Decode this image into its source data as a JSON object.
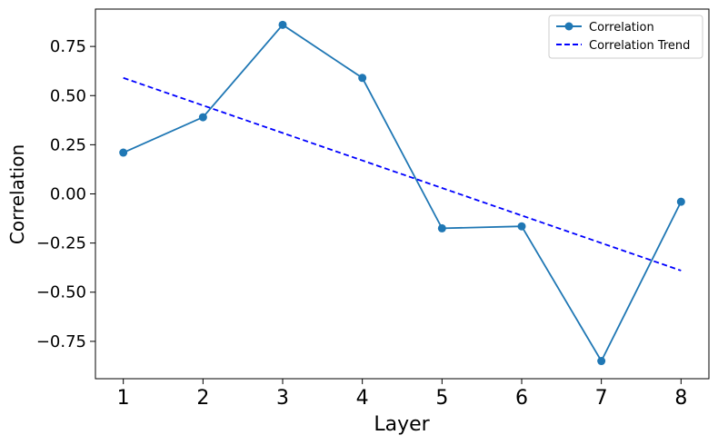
{
  "chart_data": {
    "type": "line",
    "xlabel": "Layer",
    "ylabel": "Correlation",
    "x": [
      1,
      2,
      3,
      4,
      5,
      6,
      7,
      8
    ],
    "xlim": [
      0.65,
      8.35
    ],
    "ylim": [
      -0.94,
      0.94
    ],
    "yticks": [
      -0.75,
      -0.5,
      -0.25,
      0.0,
      0.25,
      0.5,
      0.75
    ],
    "ytick_labels": [
      "−0.75",
      "−0.50",
      "−0.25",
      "0.00",
      "0.25",
      "0.50",
      "0.75"
    ],
    "xtick_labels": [
      "1",
      "2",
      "3",
      "4",
      "5",
      "6",
      "7",
      "8"
    ],
    "grid": false,
    "legend_position": "top-right",
    "series": [
      {
        "name": "Correlation",
        "values": [
          0.21,
          0.39,
          0.86,
          0.59,
          -0.175,
          -0.165,
          -0.85,
          -0.04
        ],
        "color": "#1f77b4",
        "style": "solid",
        "marker": "circle"
      },
      {
        "name": "Correlation Trend",
        "values": [
          0.59,
          0.45,
          0.31,
          0.17,
          0.03,
          -0.11,
          -0.25,
          -0.39
        ],
        "color": "#0000ff",
        "style": "dashed",
        "marker": "none"
      }
    ]
  }
}
